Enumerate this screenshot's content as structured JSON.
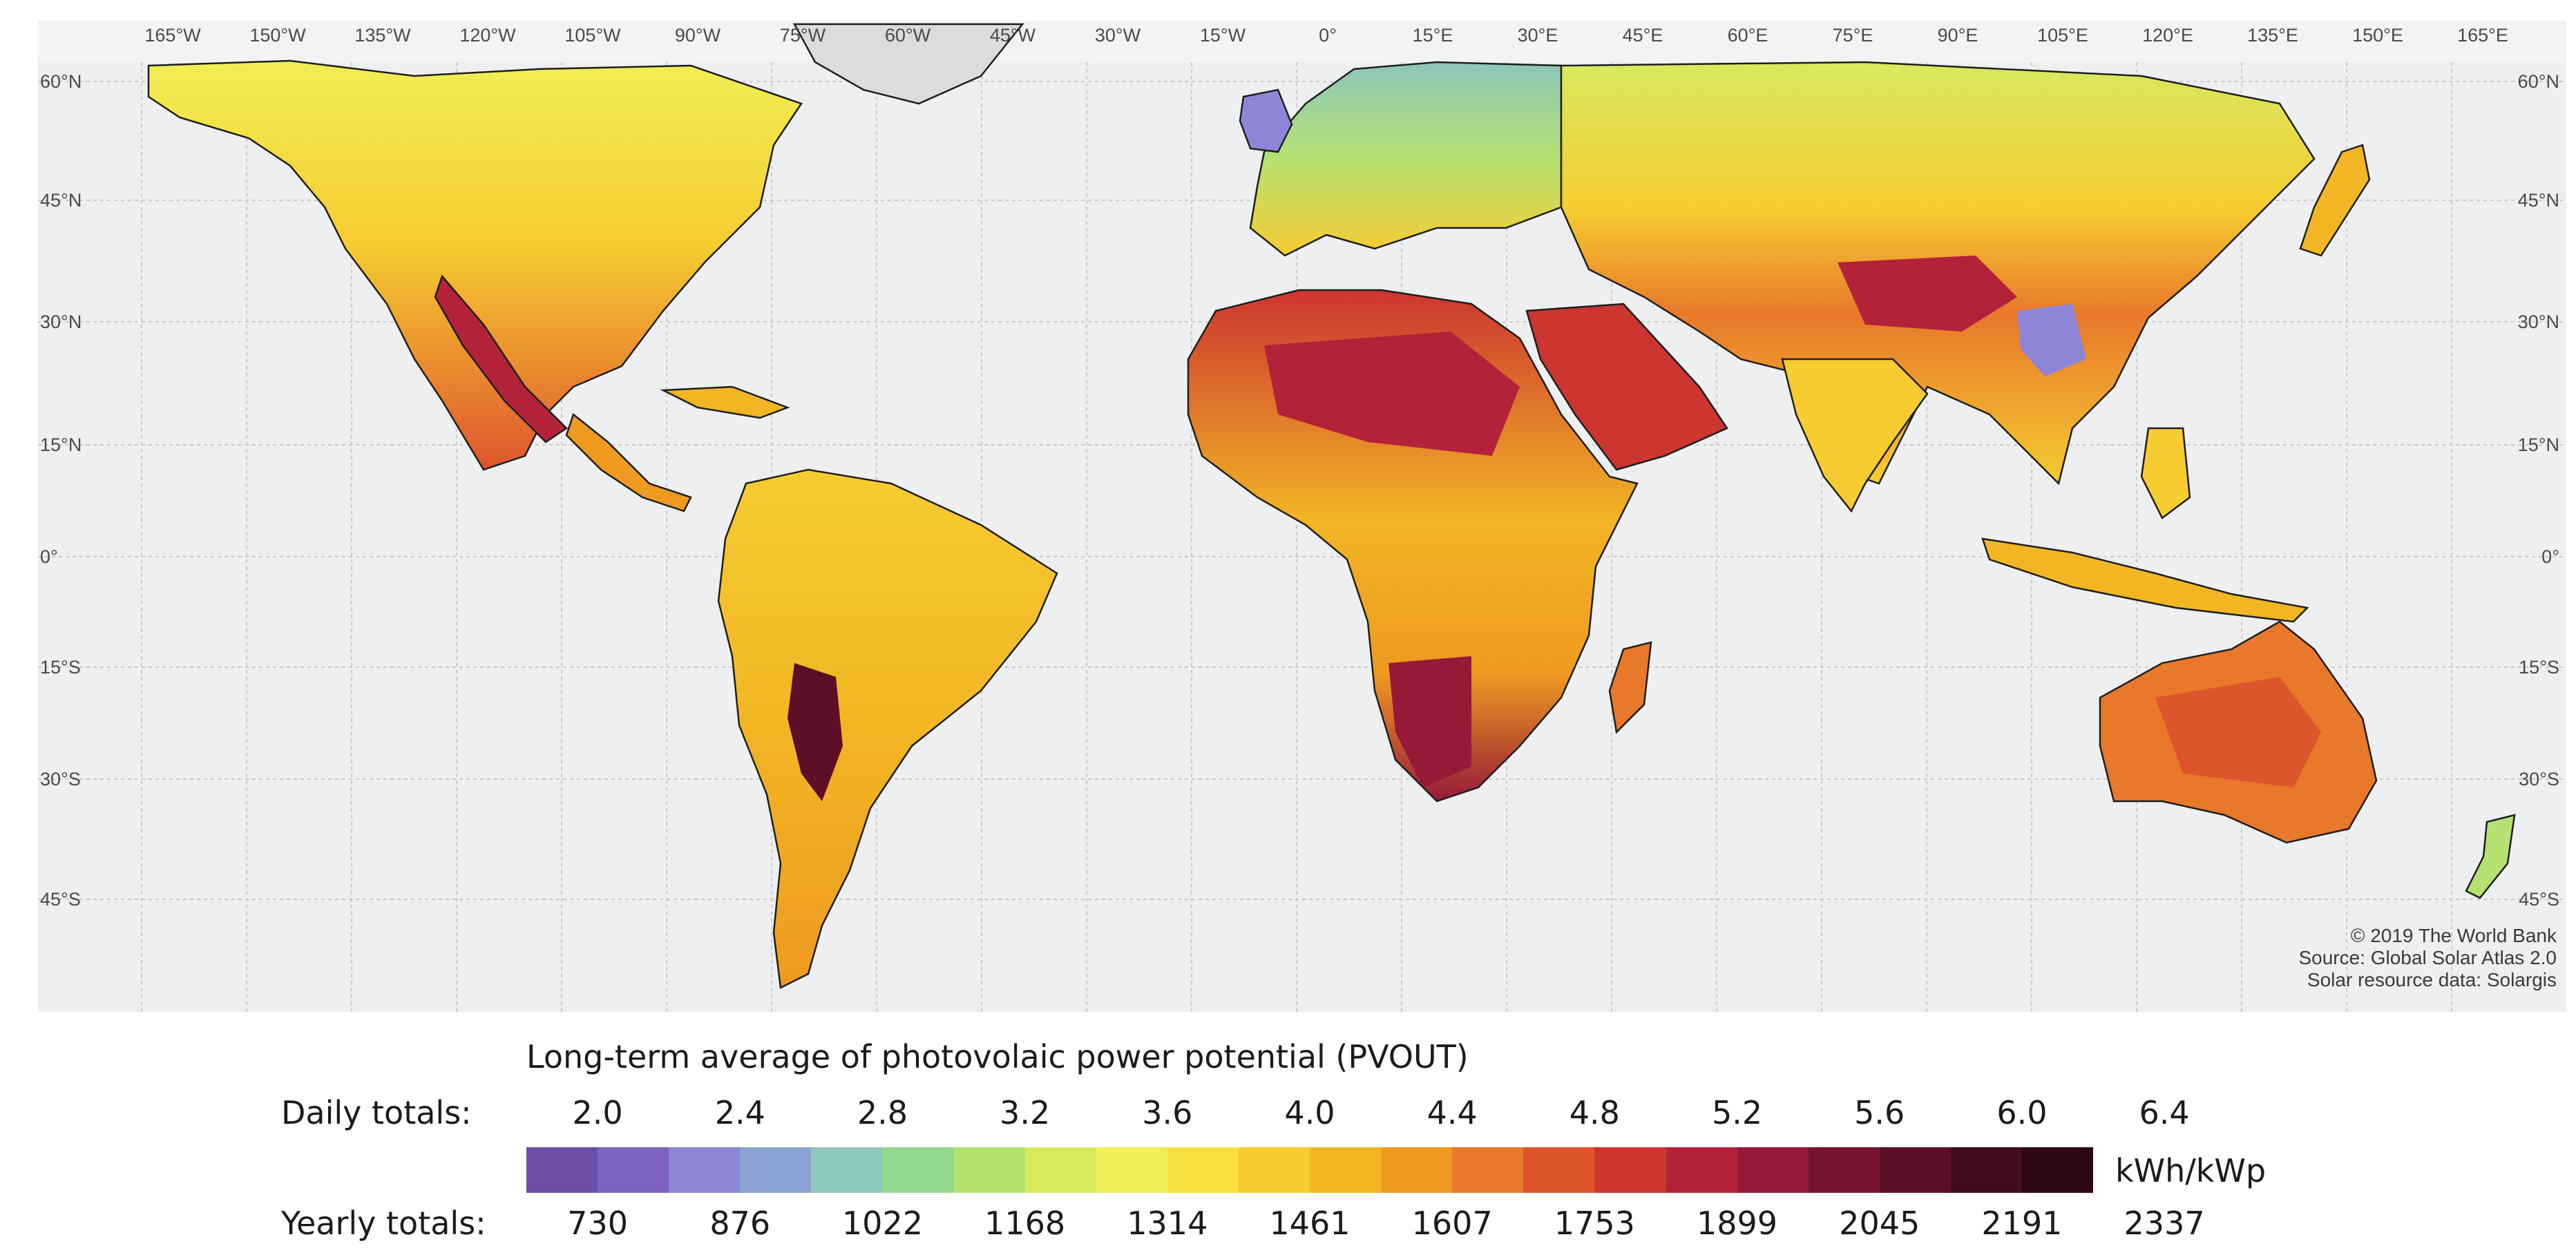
{
  "map": {
    "longitude_labels": [
      "165°W",
      "150°W",
      "135°W",
      "120°W",
      "105°W",
      "90°W",
      "75°W",
      "60°W",
      "45°W",
      "30°W",
      "15°W",
      "0°",
      "15°E",
      "30°E",
      "45°E",
      "60°E",
      "75°E",
      "90°E",
      "105°E",
      "120°E",
      "135°E",
      "150°E",
      "165°E"
    ],
    "latitude_labels": [
      "60°N",
      "45°N",
      "30°N",
      "15°N",
      "0°",
      "15°S",
      "30°S",
      "45°S"
    ],
    "credits": [
      "© 2019 The World Bank",
      "Source: Global Solar Atlas 2.0",
      "Solar resource data: Solargis"
    ],
    "colors": {
      "ocean": "#eeeff1",
      "border": "#1e1e1e",
      "graticule": "#c9cbd0",
      "polar_land": "#dcdcdc"
    }
  },
  "legend": {
    "title": "Long-term average of photovolaic power potential (PVOUT)",
    "daily_label": "Daily totals:",
    "yearly_label": "Yearly totals:",
    "unit": "kWh/kWp",
    "daily_ticks": [
      "2.0",
      "2.4",
      "2.8",
      "3.2",
      "3.6",
      "4.0",
      "4.4",
      "4.8",
      "5.2",
      "5.6",
      "6.0",
      "6.4"
    ],
    "yearly_ticks": [
      "730",
      "876",
      "1022",
      "1168",
      "1314",
      "1461",
      "1607",
      "1753",
      "1899",
      "2045",
      "2191",
      "2337"
    ],
    "colors": [
      "#6b4ea8",
      "#7d63c0",
      "#8d86d8",
      "#8aa3d4",
      "#8cc6bd",
      "#92d98b",
      "#b6e171",
      "#d8e95e",
      "#f1ee55",
      "#f7df3f",
      "#f6cc31",
      "#f2b524",
      "#ee9a20",
      "#e8782a",
      "#de552c",
      "#cc3530",
      "#b4223a",
      "#961a38",
      "#771430",
      "#5c0f27",
      "#440b1e",
      "#2e0715"
    ]
  }
}
